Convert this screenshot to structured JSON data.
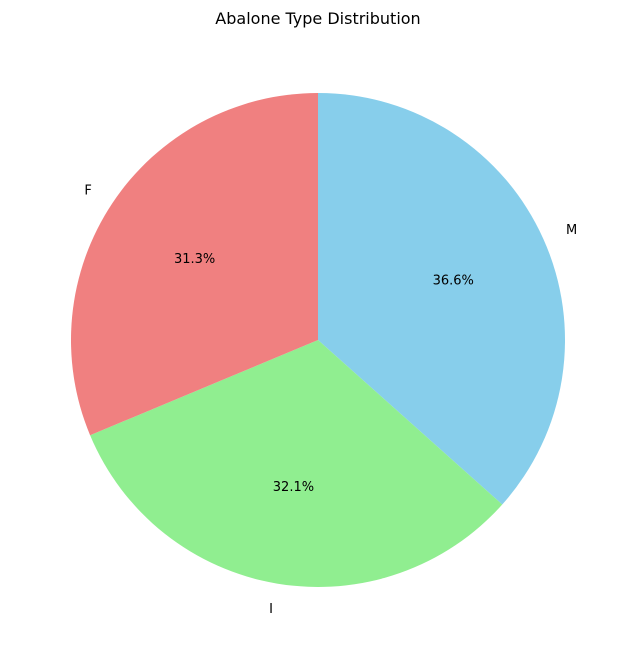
{
  "chart_data": {
    "type": "pie",
    "title": "Abalone Type Distribution",
    "start_angle_deg": 90,
    "direction": "clockwise",
    "slices": [
      {
        "label": "M",
        "value": 36.6,
        "pct_label": "36.6%",
        "color": "#87CEEB"
      },
      {
        "label": "I",
        "value": 32.1,
        "pct_label": "32.1%",
        "color": "#90EE90"
      },
      {
        "label": "F",
        "value": 31.3,
        "pct_label": "31.3%",
        "color": "#F08080"
      }
    ]
  }
}
